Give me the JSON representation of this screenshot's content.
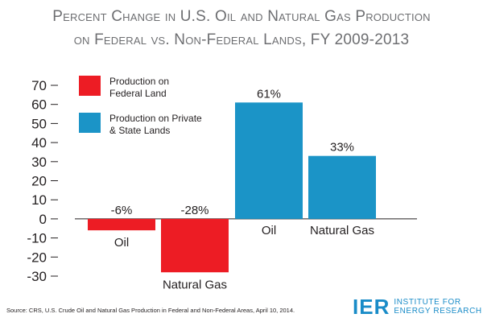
{
  "title_lines": [
    "Percent Change in U.S. Oil and Natural Gas Production",
    "on Federal vs. Non-Federal Lands, FY 2009-2013"
  ],
  "source": "Source: CRS, U.S. Crude Oil and Natural Gas Production in Federal and Non-Federal Areas, April 10, 2014.",
  "logo": {
    "mark": "IER",
    "line1": "INSTITUTE FOR",
    "line2": "ENERGY RESEARCH"
  },
  "colors": {
    "federal": "#ed1c24",
    "nonfederal": "#1b94c7",
    "title": "#6d6e71",
    "brand": "#1a8cc8"
  },
  "chart_data": {
    "type": "bar",
    "title": "Percent Change in U.S. Oil and Natural Gas Production on Federal vs. Non-Federal Lands, FY 2009-2013",
    "categories": [
      "Oil",
      "Natural Gas"
    ],
    "series": [
      {
        "name": "Production on Federal Land",
        "values": [
          -6,
          -28
        ],
        "labels": [
          "-6%",
          "-28%"
        ],
        "color": "#ed1c24"
      },
      {
        "name": "Production on Private & State Lands",
        "values": [
          61,
          33
        ],
        "labels": [
          "61%",
          "33%"
        ],
        "color": "#1b94c7"
      }
    ],
    "legend_lines": [
      [
        "Production on",
        "Federal Land"
      ],
      [
        "Production on Private",
        "& State Lands"
      ]
    ],
    "yticks": [
      70,
      60,
      50,
      40,
      30,
      20,
      10,
      0,
      -10,
      -20,
      -30
    ],
    "ytick_labels": [
      "70",
      "60",
      "50",
      "40",
      "30",
      "20",
      "10",
      "0",
      "-10",
      "-20",
      "-30"
    ],
    "ylim": [
      -30,
      70
    ],
    "grid": false,
    "legend_position": "top-left"
  }
}
